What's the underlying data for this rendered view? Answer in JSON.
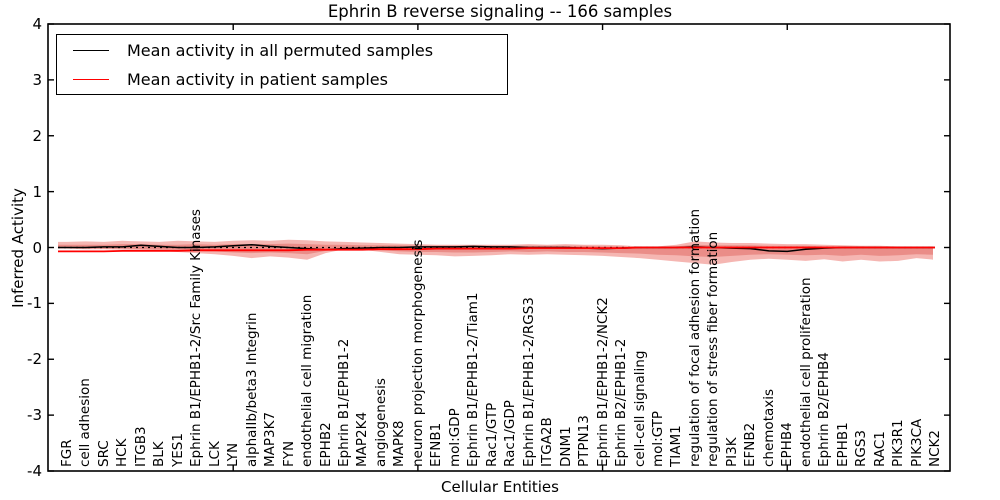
{
  "title": "Ephrin B reverse signaling -- 166 samples",
  "legend": {
    "items": [
      {
        "label": "Mean activity in all permuted samples",
        "color": "#000000"
      },
      {
        "label": "Mean activity in patient samples",
        "color": "#ff0000"
      }
    ]
  },
  "axes": {
    "ylabel": "Inferred Activity",
    "xlabel": "Cellular Entities",
    "ytick_labels": [
      "4",
      "3",
      "2",
      "1",
      "0",
      "-1",
      "-2",
      "-3",
      "-4"
    ],
    "ytick_values": [
      4,
      3,
      2,
      1,
      0,
      -1,
      -2,
      -3,
      -4
    ]
  },
  "colors": {
    "permuted_line": "#000000",
    "patient_line": "#ff0000",
    "band_outer": "#f5b6b2",
    "band_inner": "#ea8d88",
    "zero_line": "#000000",
    "frame": "#000000"
  },
  "chart_data": {
    "type": "line",
    "title": "Ephrin B reverse signaling -- 166 samples",
    "xlabel": "Cellular Entities",
    "ylabel": "Inferred Activity",
    "ylim": [
      -4,
      4
    ],
    "legend_position": "upper left",
    "grid": false,
    "zero_reference_line": 0,
    "categories": [
      "FGR",
      "cell adhesion",
      "SRC",
      "HCK",
      "ITGB3",
      "BLK",
      "YES1",
      "Ephrin B1/EPHB1-2/Src Family Kinases",
      "LCK",
      "LYN",
      "alphaIIb/beta3 Integrin",
      "MAP3K7",
      "FYN",
      "endothelial cell migration",
      "EPHB2",
      "Ephrin B1/EPHB1-2",
      "MAP2K4",
      "angiogenesis",
      "MAPK8",
      "neuron projection morphogenesis",
      "EFNB1",
      "mol:GDP",
      "Ephrin B1/EPHB1-2/Tiam1",
      "Rac1/GTP",
      "Rac1/GDP",
      "Ephrin B1/EPHB1-2/RGS3",
      "ITGA2B",
      "DNM1",
      "PTPN13",
      "Ephrin B1/EPHB1-2/NCK2",
      "Ephrin B2/EPHB1-2",
      "cell-cell signaling",
      "mol:GTP",
      "TIAM1",
      "regulation of focal adhesion formation",
      "regulation of stress fiber formation",
      "PI3K",
      "EFNB2",
      "chemotaxis",
      "EPHB4",
      "endothelial cell proliferation",
      "Ephrin B2/EPHB4",
      "EPHB1",
      "RGS3",
      "RAC1",
      "PIK3R1",
      "PIK3CA",
      "NCK2"
    ],
    "series": [
      {
        "name": "Mean activity in all permuted samples",
        "color": "#000000",
        "values": [
          0.0,
          0.0,
          0.01,
          0.01,
          0.04,
          0.02,
          0.0,
          0.0,
          0.01,
          0.03,
          0.05,
          0.02,
          0.0,
          -0.02,
          -0.04,
          -0.02,
          -0.01,
          0.0,
          0.0,
          0.01,
          0.01,
          0.01,
          0.02,
          0.01,
          0.01,
          0.0,
          0.0,
          0.0,
          -0.01,
          -0.02,
          -0.01,
          0.0,
          0.0,
          0.0,
          0.01,
          0.0,
          -0.01,
          -0.02,
          -0.06,
          -0.07,
          -0.03,
          -0.01,
          0.0,
          0.0,
          0.0,
          0.0,
          0.0,
          0.0
        ]
      },
      {
        "name": "Mean activity in patient samples",
        "color": "#ff0000",
        "values": [
          -0.07,
          -0.07,
          -0.07,
          -0.06,
          -0.06,
          -0.06,
          -0.06,
          -0.05,
          -0.05,
          -0.05,
          -0.05,
          -0.05,
          -0.05,
          -0.04,
          -0.04,
          -0.04,
          -0.04,
          -0.03,
          -0.03,
          -0.03,
          -0.02,
          -0.02,
          -0.02,
          -0.02,
          -0.02,
          -0.01,
          -0.01,
          -0.01,
          -0.01,
          -0.01,
          -0.01,
          0.0,
          0.0,
          0.0,
          0.0,
          0.0,
          0.0,
          0.0,
          0.0,
          0.0,
          0.0,
          0.0,
          0.0,
          0.0,
          0.0,
          0.0,
          0.0,
          0.0
        ]
      }
    ],
    "bands": {
      "outer_top": [
        0.1,
        0.11,
        0.1,
        0.12,
        0.11,
        0.1,
        0.12,
        0.11,
        0.1,
        0.12,
        0.13,
        0.12,
        0.14,
        0.13,
        0.11,
        0.1,
        0.09,
        0.08,
        0.07,
        0.06,
        0.05,
        0.05,
        0.05,
        0.05,
        0.05,
        0.06,
        0.05,
        0.06,
        0.05,
        0.05,
        0.04,
        0.02,
        0.02,
        0.05,
        0.11,
        0.09,
        0.08,
        0.08,
        0.07,
        0.06,
        0.06,
        0.05,
        0.04,
        0.03,
        0.03,
        0.02,
        0.02,
        0.02
      ],
      "outer_bottom": [
        -0.22,
        -0.19,
        -0.24,
        -0.25,
        -0.22,
        -0.25,
        -0.21,
        -0.24,
        -0.22,
        -0.2,
        -0.22,
        -0.26,
        -0.31,
        -0.28,
        -0.25,
        -0.22,
        -0.19,
        -0.17,
        -0.15,
        -0.14,
        -0.13,
        -0.12,
        -0.13,
        -0.12,
        -0.14,
        -0.15,
        -0.16,
        -0.14,
        -0.13,
        -0.12,
        -0.08,
        -0.04,
        -0.03,
        -0.1,
        -0.22,
        -0.18,
        -0.16,
        -0.19,
        -0.15,
        -0.12,
        -0.1,
        -0.08,
        -0.06,
        -0.05,
        -0.04,
        -0.03,
        -0.03,
        -0.02
      ],
      "inner_top": [
        0.05,
        0.05,
        0.05,
        0.06,
        0.06,
        0.05,
        0.05,
        0.06,
        0.05,
        0.06,
        0.06,
        0.06,
        0.07,
        0.06,
        0.05,
        0.05,
        0.04,
        0.04,
        0.04,
        0.03,
        0.03,
        0.03,
        0.03,
        0.03,
        0.03,
        0.03,
        0.03,
        0.03,
        0.03,
        0.02,
        0.02,
        0.01,
        0.01,
        0.02,
        0.05,
        0.04,
        0.04,
        0.04,
        0.03,
        0.03,
        0.03,
        0.02,
        0.02,
        0.02,
        0.01,
        0.01,
        0.01,
        0.01
      ],
      "inner_bottom": [
        -0.13,
        -0.12,
        -0.14,
        -0.15,
        -0.13,
        -0.15,
        -0.13,
        -0.14,
        -0.13,
        -0.12,
        -0.13,
        -0.15,
        -0.17,
        -0.16,
        -0.14,
        -0.13,
        -0.11,
        -0.1,
        -0.09,
        -0.08,
        -0.08,
        -0.07,
        -0.08,
        -0.07,
        -0.08,
        -0.09,
        -0.09,
        -0.08,
        -0.08,
        -0.07,
        -0.05,
        -0.02,
        -0.02,
        -0.06,
        -0.12,
        -0.1,
        -0.09,
        -0.1,
        -0.09,
        -0.07,
        -0.06,
        -0.05,
        -0.04,
        -0.03,
        -0.02,
        -0.02,
        -0.02,
        -0.01
      ]
    }
  }
}
